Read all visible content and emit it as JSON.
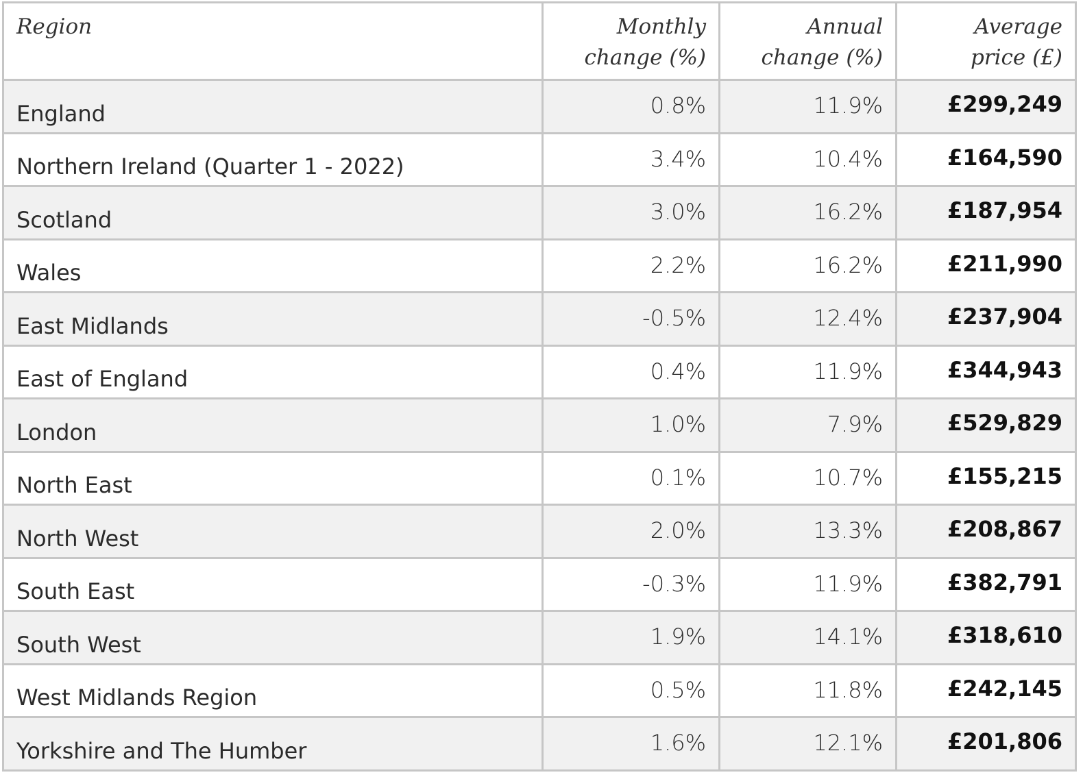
{
  "table": {
    "headers": {
      "region": "Region",
      "monthly": [
        "Monthly",
        "change (%)"
      ],
      "annual": [
        "Annual",
        "change (%)"
      ],
      "price": [
        "Average",
        "price (£)"
      ]
    },
    "rows": [
      {
        "region": "England",
        "monthly": "0.8%",
        "annual": "11.9%",
        "price": "£299,249"
      },
      {
        "region": "Northern Ireland (Quarter 1 - 2022)",
        "monthly": "3.4%",
        "annual": "10.4%",
        "price": "£164,590"
      },
      {
        "region": "Scotland",
        "monthly": "3.0%",
        "annual": "16.2%",
        "price": "£187,954"
      },
      {
        "region": "Wales",
        "monthly": "2.2%",
        "annual": "16.2%",
        "price": "£211,990"
      },
      {
        "region": "East Midlands",
        "monthly": "-0.5%",
        "annual": "12.4%",
        "price": "£237,904"
      },
      {
        "region": "East of England",
        "monthly": "0.4%",
        "annual": "11.9%",
        "price": "£344,943"
      },
      {
        "region": "London",
        "monthly": "1.0%",
        "annual": "7.9%",
        "price": "£529,829"
      },
      {
        "region": "North East",
        "monthly": "0.1%",
        "annual": "10.7%",
        "price": "£155,215"
      },
      {
        "region": "North West",
        "monthly": "2.0%",
        "annual": "13.3%",
        "price": "£208,867"
      },
      {
        "region": "South East",
        "monthly": "-0.3%",
        "annual": "11.9%",
        "price": "£382,791"
      },
      {
        "region": "South West",
        "monthly": "1.9%",
        "annual": "14.1%",
        "price": "£318,610"
      },
      {
        "region": "West Midlands Region",
        "monthly": "0.5%",
        "annual": "11.8%",
        "price": "£242,145"
      },
      {
        "region": "Yorkshire and The Humber",
        "monthly": "1.6%",
        "annual": "12.1%",
        "price": "£201,806"
      }
    ]
  },
  "colors": {
    "border": "#c6c6c6",
    "stripe": "#f1f1f1",
    "background": "#ffffff",
    "text": "#222222"
  }
}
